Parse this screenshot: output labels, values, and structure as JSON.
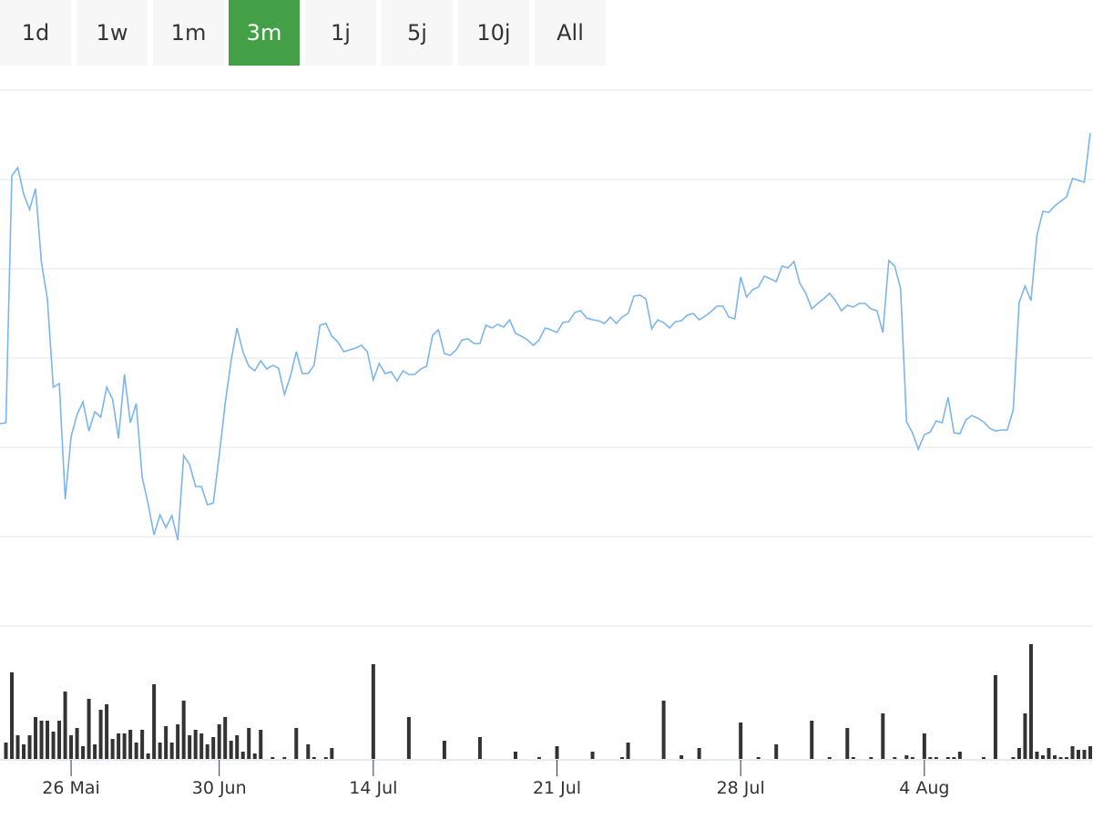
{
  "range_buttons": [
    "1d",
    "1w",
    "1m",
    "3m",
    "1j",
    "5j",
    "10j",
    "All"
  ],
  "selected": "3m",
  "chart_data": [
    {
      "type": "line",
      "color": "#7cb5ec",
      "ylim": [
        0,
        588
      ],
      "yticks": [
        0,
        98,
        196,
        294,
        392,
        490,
        588
      ],
      "grid": true,
      "values": [
        222,
        223,
        494,
        503,
        474,
        457,
        480,
        399,
        359,
        262,
        266,
        139,
        208,
        232,
        246,
        214,
        235,
        229,
        262,
        249,
        206,
        276,
        223,
        244,
        163,
        134,
        100,
        122,
        108,
        121,
        94,
        187,
        177,
        153,
        153,
        133,
        135,
        187,
        244,
        291,
        327,
        301,
        285,
        280,
        291,
        282,
        286,
        283,
        254,
        274,
        301,
        277,
        277,
        286,
        330,
        332,
        318,
        312,
        301,
        303,
        305,
        308,
        301,
        270,
        288,
        277,
        279,
        269,
        280,
        276,
        276,
        282,
        285,
        319,
        325,
        299,
        297,
        303,
        314,
        315,
        310,
        310,
        330,
        327,
        331,
        328,
        336,
        321,
        318,
        314,
        308,
        314,
        327,
        325,
        322,
        333,
        334,
        344,
        346,
        338,
        336,
        335,
        332,
        339,
        332,
        339,
        343,
        362,
        363,
        359,
        326,
        336,
        333,
        327,
        334,
        335,
        341,
        343,
        336,
        340,
        345,
        351,
        351,
        339,
        337,
        383,
        361,
        369,
        372,
        384,
        381,
        378,
        395,
        393,
        400,
        376,
        365,
        348,
        354,
        359,
        365,
        357,
        346,
        352,
        350,
        354,
        354,
        348,
        346,
        322,
        401,
        395,
        370,
        224,
        212,
        194,
        210,
        213,
        225,
        223,
        251,
        212,
        211,
        226,
        231,
        228,
        224,
        217,
        214,
        215,
        215,
        237,
        355,
        373,
        357,
        429,
        455,
        454,
        461,
        466,
        471,
        491,
        489,
        487,
        541
      ]
    },
    {
      "type": "bar",
      "color": "#333333",
      "ylim": [
        0,
        130
      ],
      "xlim": [
        0,
        184
      ],
      "xticks": [
        {
          "value": 12,
          "label": "26 Mai"
        },
        {
          "value": 37,
          "label": "30 Jun"
        },
        {
          "value": 63,
          "label": "14 Jul"
        },
        {
          "value": 94,
          "label": "21 Jul"
        },
        {
          "value": 125,
          "label": "28 Jul"
        },
        {
          "value": 156,
          "label": "4 Aug"
        }
      ],
      "x": [
        1,
        2,
        3,
        4,
        5,
        6,
        7,
        8,
        9,
        10,
        11,
        12,
        13,
        14,
        15,
        16,
        17,
        18,
        19,
        20,
        21,
        22,
        23,
        24,
        25,
        26,
        27,
        28,
        29,
        30,
        31,
        32,
        33,
        34,
        35,
        36,
        37,
        38,
        39,
        40,
        41,
        42,
        43,
        44,
        46,
        48,
        50,
        52,
        53,
        55,
        56,
        63,
        69,
        75,
        81,
        87,
        91,
        94,
        100,
        105,
        106,
        112,
        115,
        118,
        125,
        128,
        131,
        137,
        140,
        143,
        144,
        147,
        149,
        151,
        153,
        154,
        156,
        157,
        158,
        160,
        161,
        162,
        166,
        168,
        171,
        172,
        173,
        174,
        175,
        176,
        177,
        178,
        179,
        180,
        181,
        182,
        183,
        184
      ],
      "values": [
        18,
        95,
        26,
        16,
        26,
        46,
        42,
        42,
        30,
        42,
        74,
        26,
        34,
        14,
        66,
        16,
        54,
        60,
        22,
        28,
        28,
        32,
        18,
        32,
        6,
        82,
        18,
        36,
        18,
        38,
        64,
        26,
        32,
        28,
        16,
        24,
        38,
        46,
        20,
        26,
        8,
        34,
        6,
        32,
        2,
        2,
        34,
        16,
        2,
        2,
        12,
        104,
        46,
        20,
        24,
        8,
        2,
        14,
        8,
        2,
        18,
        64,
        4,
        12,
        40,
        2,
        16,
        42,
        2,
        34,
        2,
        2,
        50,
        2,
        4,
        2,
        28,
        2,
        2,
        2,
        2,
        8,
        2,
        92,
        2,
        12,
        50,
        126,
        8,
        4,
        12,
        4,
        2,
        2,
        14,
        10,
        10,
        14
      ]
    }
  ]
}
